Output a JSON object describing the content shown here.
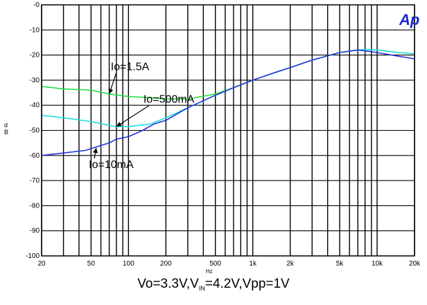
{
  "chart_data": {
    "type": "line",
    "title": "",
    "xlabel": "",
    "x_unit_label": "Hz",
    "ylabel": "d\nB",
    "x_scale": "log",
    "xlim": [
      20,
      20000
    ],
    "ylim": [
      -100,
      0
    ],
    "grid": true,
    "x_tick_labels": [
      "20",
      "50",
      "100",
      "200",
      "500",
      "1k",
      "2k",
      "5k",
      "10k",
      "20k"
    ],
    "x_tick_values": [
      20,
      50,
      100,
      200,
      500,
      1000,
      2000,
      5000,
      10000,
      20000
    ],
    "y_tick_labels": [
      "-0",
      "-10",
      "-20",
      "-30",
      "-40",
      "-50",
      "-60",
      "-70",
      "-80",
      "-90",
      "-100"
    ],
    "y_tick_values": [
      0,
      -10,
      -20,
      -30,
      -40,
      -50,
      -60,
      -70,
      -80,
      -90,
      -100
    ],
    "series": [
      {
        "name": "Io=1.5A",
        "color": "#22dd44",
        "x": [
          20,
          30,
          50,
          70,
          100,
          150,
          200,
          300,
          500,
          700,
          1000,
          1500,
          2000,
          3000,
          5000,
          7000,
          8500,
          10000,
          15000,
          20000
        ],
        "y": [
          -32.5,
          -33.5,
          -34,
          -35.5,
          -36.5,
          -37,
          -37.5,
          -37.5,
          -35.5,
          -33,
          -30,
          -27,
          -25,
          -22,
          -19,
          -18,
          -17.8,
          -18,
          -19,
          -19.5
        ]
      },
      {
        "name": "Io=500mA",
        "color": "#22dddd",
        "x": [
          20,
          30,
          50,
          70,
          80,
          100,
          150,
          200,
          300,
          500,
          700,
          1000,
          1500,
          2000,
          3000,
          5000,
          7000,
          8500,
          10000,
          15000,
          20000
        ],
        "y": [
          -44,
          -45,
          -46.5,
          -48,
          -48.5,
          -48.5,
          -47.5,
          -45,
          -41,
          -36,
          -33,
          -30,
          -27,
          -25,
          -22,
          -19,
          -18,
          -17.8,
          -18,
          -19,
          -19.5
        ]
      },
      {
        "name": "Io=10mA",
        "color": "#2233dd",
        "x": [
          20,
          30,
          45,
          60,
          70,
          80,
          100,
          130,
          160,
          200,
          300,
          500,
          700,
          1000,
          1500,
          2000,
          3000,
          5000,
          7000,
          8500,
          10000,
          15000,
          20000
        ],
        "y": [
          -60,
          -59,
          -58,
          -56,
          -55,
          -53.5,
          -52.5,
          -50,
          -47.5,
          -46,
          -41,
          -36,
          -33,
          -30,
          -27,
          -25,
          -22,
          -19,
          -18,
          -18.5,
          -19,
          -20.5,
          -21.5
        ]
      }
    ],
    "annotations": [
      {
        "text": "Io=1.5A",
        "series": "Io=1.5A",
        "text_at": [
          72,
          -26
        ],
        "arrow_to": [
          70,
          -35.5
        ]
      },
      {
        "text": "Io=500mA",
        "series": "Io=500mA",
        "text_at": [
          132,
          -39
        ],
        "arrow_to": [
          80,
          -48.5
        ]
      },
      {
        "text": "Io=10mA",
        "series": "Io=10mA",
        "text_at": [
          48,
          -65
        ],
        "arrow_to": [
          55,
          -57
        ]
      }
    ]
  },
  "logo_text": "Ap",
  "caption": {
    "part1": "Vo=3.3V,V",
    "vin_sub": "IN",
    "hz_over": "Hz",
    "part2": "=4.2V,Vpp=1V"
  }
}
